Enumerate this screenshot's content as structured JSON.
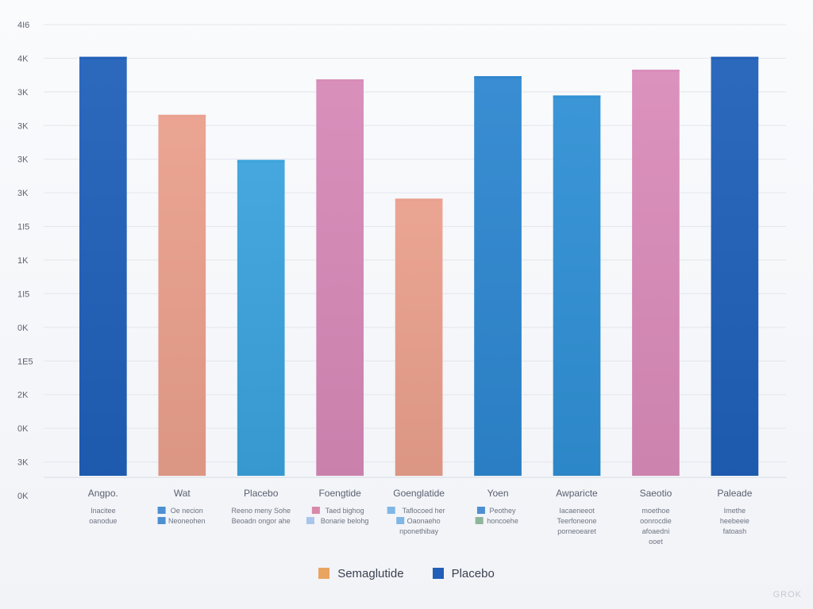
{
  "chart_data": {
    "type": "bar",
    "title": "",
    "xlabel": "",
    "ylabel": "",
    "y_tick_labels": [
      "4I6",
      "4K",
      "3K",
      "3K",
      "3K",
      "3K",
      "1I5",
      "1K",
      "1I5",
      "0K",
      "1E5",
      "2K",
      "0K",
      "3K",
      "0K"
    ],
    "grid": "horizontal",
    "ylim": [
      0,
      14
    ],
    "categories": [
      "Angpo.",
      "Wat",
      "Placebo",
      "Foengtide",
      "Goenglatide",
      "Yoen",
      "Awparicte",
      "Saeotio",
      "Paleade"
    ],
    "values": [
      13.0,
      11.2,
      9.8,
      12.3,
      8.6,
      12.4,
      11.8,
      12.6,
      13.0
    ],
    "bar_colors": [
      "#1f5fb8",
      "#ea9f8c",
      "#3aa2dc",
      "#d689b7",
      "#ea9f8c",
      "#2d86cf",
      "#2f8fd4",
      "#d98bb8",
      "#1f5fb8"
    ],
    "sub_labels": [
      {
        "lines": [
          "Inacitee",
          "oanodue"
        ],
        "markers": []
      },
      {
        "lines": [
          "Oe necion",
          "Neoneohen"
        ],
        "markers": [
          "#4d8fd1",
          "#4d8fd1"
        ]
      },
      {
        "lines": [
          "Reeno meny Sohe",
          "Beoadn ongor ahe"
        ],
        "markers": []
      },
      {
        "lines": [
          "Taed bighog",
          "Bonarie belohg"
        ],
        "markers": [
          "#d888a8",
          "#a9c6ea"
        ]
      },
      {
        "lines": [
          "Taflocoed her",
          "Oaonaeho",
          "nponethibay"
        ],
        "markers": [
          "#7fb7e6",
          "#7fb7e6"
        ]
      },
      {
        "lines": [
          "Peothey",
          "honcoehe"
        ],
        "markers": [
          "#4d8fd1",
          "#8fb59a"
        ]
      },
      {
        "lines": [
          "Iacaeneeot",
          "Teerfoneone",
          "porneoearet"
        ],
        "markers": []
      },
      {
        "lines": [
          "moethoe",
          "oonrocdie",
          "afoaedni",
          "ooet"
        ],
        "markers": []
      },
      {
        "lines": [
          "Imethe",
          "heebeeie",
          "fatoash"
        ],
        "markers": []
      }
    ],
    "legend": {
      "placement": "bottom-center",
      "entries": [
        {
          "name": "Semaglutide",
          "color": "#e8a561"
        },
        {
          "name": "Placebo",
          "color": "#1f5fb8"
        }
      ]
    }
  },
  "watermark": "GROK"
}
